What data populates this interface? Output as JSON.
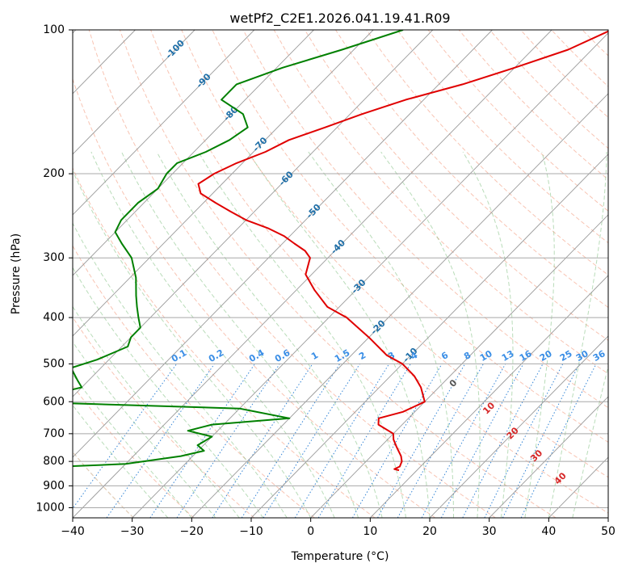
{
  "chart_data": {
    "type": "line",
    "title": "wetPf2_C2E1.2026.041.19.41.R09",
    "xlabel": "Temperature (°C)",
    "ylabel": "Pressure (hPa)",
    "xlim": [
      -40,
      50
    ],
    "ylim": [
      1050,
      100
    ],
    "y_scale": "log",
    "grid": true,
    "x_ticks": [
      -40,
      -30,
      -20,
      -10,
      0,
      10,
      20,
      30,
      40,
      50
    ],
    "y_ticks": [
      100,
      200,
      300,
      400,
      500,
      600,
      700,
      800,
      900,
      1000
    ],
    "skew_isotherm_labels": [
      -100,
      -90,
      -80,
      -70,
      -60,
      -50,
      -40,
      -30,
      -20,
      -10
    ],
    "dry_adiabat_labels": [
      "0",
      "10",
      "20",
      "30",
      "40"
    ],
    "mixing_ratio_labels": [
      "0.1",
      "0.2",
      "0.4",
      "0.6",
      "1",
      "1.5",
      "2",
      "3",
      "4",
      "6",
      "8",
      "10",
      "13",
      "16",
      "20",
      "25",
      "30",
      "36"
    ],
    "series": [
      {
        "role": "temperature",
        "color": "#e00000",
        "points": [
          [
            -30,
            100
          ],
          [
            -34,
            110
          ],
          [
            -40,
            120
          ],
          [
            -46,
            130
          ],
          [
            -53,
            140
          ],
          [
            -58,
            150
          ],
          [
            -62,
            160
          ],
          [
            -66,
            170
          ],
          [
            -68,
            180
          ],
          [
            -71,
            190
          ],
          [
            -73,
            200
          ],
          [
            -74,
            210
          ],
          [
            -72,
            220
          ],
          [
            -68,
            230
          ],
          [
            -64,
            240
          ],
          [
            -60,
            250
          ],
          [
            -55,
            260
          ],
          [
            -51,
            270
          ],
          [
            -48,
            280
          ],
          [
            -45,
            290
          ],
          [
            -43,
            300
          ],
          [
            -41,
            325
          ],
          [
            -37,
            350
          ],
          [
            -32,
            380
          ],
          [
            -27,
            400
          ],
          [
            -20,
            440
          ],
          [
            -14,
            480
          ],
          [
            -10,
            500
          ],
          [
            -6,
            530
          ],
          [
            -3,
            560
          ],
          [
            0,
            600
          ],
          [
            -2,
            630
          ],
          [
            -5,
            650
          ],
          [
            -4,
            670
          ],
          [
            0,
            700
          ],
          [
            1,
            720
          ],
          [
            3,
            750
          ],
          [
            5,
            780
          ],
          [
            6,
            800
          ],
          [
            6.5,
            820
          ],
          [
            6,
            830
          ],
          [
            7,
            835
          ]
        ]
      },
      {
        "role": "dewpoint",
        "color": "#008000",
        "points": [
          [
            -65,
            100
          ],
          [
            -72,
            110
          ],
          [
            -79,
            120
          ],
          [
            -84,
            130
          ],
          [
            -84,
            140
          ],
          [
            -78,
            150
          ],
          [
            -75,
            160
          ],
          [
            -76,
            170
          ],
          [
            -78,
            180
          ],
          [
            -81,
            190
          ],
          [
            -81,
            200
          ],
          [
            -80,
            215
          ],
          [
            -81,
            230
          ],
          [
            -81,
            250
          ],
          [
            -80,
            265
          ],
          [
            -77,
            280
          ],
          [
            -73,
            300
          ],
          [
            -69,
            330
          ],
          [
            -66,
            360
          ],
          [
            -64,
            380
          ],
          [
            -62,
            400
          ],
          [
            -60,
            420
          ],
          [
            -60,
            440
          ],
          [
            -59,
            460
          ],
          [
            -62,
            490
          ],
          [
            -65,
            510
          ],
          [
            -62,
            540
          ],
          [
            -60,
            560
          ],
          [
            -64,
            580
          ],
          [
            -68,
            600
          ],
          [
            -30,
            620
          ],
          [
            -20,
            650
          ],
          [
            -32,
            670
          ],
          [
            -35,
            690
          ],
          [
            -30,
            710
          ],
          [
            -31,
            740
          ],
          [
            -29,
            760
          ],
          [
            -32,
            780
          ],
          [
            -40,
            810
          ],
          [
            -56,
            826
          ],
          [
            -60,
            830
          ],
          [
            -57,
            835
          ]
        ]
      }
    ]
  }
}
